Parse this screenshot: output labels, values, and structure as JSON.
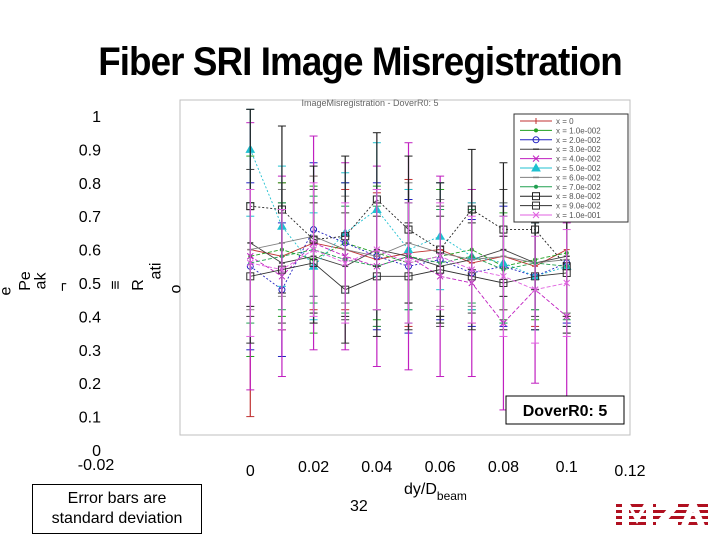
{
  "slide": {
    "title": "Fiber SRI Image Misregistration",
    "note_line1": "Error bars are",
    "note_line2": "standard deviation",
    "page_number": "32"
  },
  "chart_data": {
    "type": "line",
    "inner_title": "ImageMisregistration - DoverR0: 5",
    "annotation": "DoverR0: 5",
    "xlabel_main": "dy/D",
    "xlabel_sub": "beam",
    "ylabel_fragments": [
      "e",
      "Pe",
      "ak",
      "¬",
      "≡",
      "R",
      "ati",
      "o"
    ],
    "x_ticks": [
      "-0.02",
      "0",
      "0.02",
      "0.04",
      "0.06",
      "0.08",
      "0.1",
      "0.12"
    ],
    "y_ticks": [
      "0",
      "0.1",
      "0.2",
      "0.3",
      "0.4",
      "0.5",
      "0.6",
      "0.7",
      "0.8",
      "0.9",
      "1"
    ],
    "xlim": [
      -0.02,
      0.12
    ],
    "ylim": [
      0,
      1
    ],
    "grid": false,
    "legend_position": "top-right",
    "x": [
      0,
      0.01,
      0.02,
      0.03,
      0.04,
      0.05,
      0.06,
      0.07,
      0.08,
      0.09,
      0.1
    ],
    "series": [
      {
        "name": "x = 0",
        "color": "#c03030",
        "marker": "plus",
        "values": [
          0.6,
          0.58,
          0.62,
          0.6,
          0.57,
          0.59,
          0.6,
          0.56,
          0.58,
          0.55,
          0.6
        ],
        "err": [
          0.5,
          0.22,
          0.2,
          0.18,
          0.2,
          0.22,
          0.2,
          0.18,
          0.16,
          0.18,
          0.2
        ]
      },
      {
        "name": "x = 1.0e-002",
        "color": "#20a020",
        "marker": "dot",
        "values": [
          0.58,
          0.6,
          0.57,
          0.62,
          0.59,
          0.56,
          0.58,
          0.6,
          0.55,
          0.57,
          0.59
        ],
        "err": [
          0.3,
          0.2,
          0.22,
          0.18,
          0.2,
          0.18,
          0.2,
          0.18,
          0.16,
          0.18,
          0.18
        ]
      },
      {
        "name": "x = 2.0e-002",
        "color": "#2020c0",
        "marker": "circle",
        "values": [
          0.55,
          0.48,
          0.66,
          0.62,
          0.58,
          0.55,
          0.57,
          0.53,
          0.55,
          0.52,
          0.56
        ],
        "err": [
          0.25,
          0.2,
          0.2,
          0.18,
          0.22,
          0.2,
          0.18,
          0.16,
          0.18,
          0.16,
          0.18
        ]
      },
      {
        "name": "x = 3.0e-002",
        "color": "#404040",
        "marker": "tick",
        "values": [
          0.62,
          0.56,
          0.58,
          0.55,
          0.6,
          0.58,
          0.55,
          0.57,
          0.6,
          0.56,
          0.58
        ],
        "err": [
          0.22,
          0.18,
          0.2,
          0.16,
          0.18,
          0.2,
          0.18,
          0.16,
          0.18,
          0.16,
          0.18
        ]
      },
      {
        "name": "x = 4.0e-002",
        "color": "#c020c0",
        "marker": "x",
        "values": [
          0.58,
          0.52,
          0.62,
          0.58,
          0.55,
          0.58,
          0.52,
          0.5,
          0.38,
          0.48,
          0.4
        ],
        "err": [
          0.4,
          0.3,
          0.32,
          0.28,
          0.3,
          0.34,
          0.3,
          0.28,
          0.26,
          0.28,
          0.28
        ]
      },
      {
        "name": "x = 5.0e-002",
        "color": "#20c0d0",
        "marker": "triangle",
        "values": [
          0.9,
          0.67,
          0.55,
          0.65,
          0.72,
          0.6,
          0.64,
          0.58,
          0.56,
          0.52,
          0.55
        ],
        "err": [
          0.2,
          0.18,
          0.16,
          0.18,
          0.2,
          0.18,
          0.16,
          0.16,
          0.18,
          0.16,
          0.18
        ]
      },
      {
        "name": "x = 6.0e-002",
        "color": "#808080",
        "marker": "dash",
        "values": [
          0.6,
          0.62,
          0.64,
          0.6,
          0.58,
          0.62,
          0.59,
          0.57,
          0.58,
          0.56,
          0.57
        ],
        "err": [
          0.18,
          0.16,
          0.18,
          0.16,
          0.16,
          0.18,
          0.16,
          0.14,
          0.16,
          0.14,
          0.16
        ]
      },
      {
        "name": "x = 7.0e-002",
        "color": "#20a050",
        "marker": "dot",
        "values": [
          0.56,
          0.58,
          0.6,
          0.57,
          0.55,
          0.58,
          0.56,
          0.58,
          0.54,
          0.56,
          0.55
        ],
        "err": [
          0.18,
          0.16,
          0.16,
          0.16,
          0.18,
          0.16,
          0.16,
          0.14,
          0.16,
          0.14,
          0.16
        ]
      },
      {
        "name": "x = 8.0e-002",
        "color": "#202020",
        "marker": "square",
        "values": [
          0.73,
          0.72,
          0.63,
          0.64,
          0.75,
          0.66,
          0.6,
          0.72,
          0.66,
          0.66,
          0.55
        ],
        "err": [
          0.3,
          0.25,
          0.22,
          0.24,
          0.2,
          0.22,
          0.2,
          0.18,
          0.2,
          0.18,
          0.2
        ]
      },
      {
        "name": "x = 9.0e-002",
        "color": "#303030",
        "marker": "square",
        "values": [
          0.52,
          0.54,
          0.56,
          0.48,
          0.52,
          0.52,
          0.54,
          0.52,
          0.5,
          0.52,
          0.53
        ],
        "err": [
          0.2,
          0.18,
          0.18,
          0.16,
          0.18,
          0.16,
          0.16,
          0.16,
          0.14,
          0.16,
          0.16
        ]
      },
      {
        "name": "x = 1.0e-001",
        "color": "#e060e0",
        "marker": "x",
        "values": [
          0.56,
          0.54,
          0.6,
          0.56,
          0.6,
          0.56,
          0.58,
          0.54,
          0.52,
          0.48,
          0.5
        ],
        "err": [
          0.22,
          0.18,
          0.2,
          0.18,
          0.18,
          0.18,
          0.16,
          0.16,
          0.18,
          0.16,
          0.16
        ]
      }
    ]
  }
}
